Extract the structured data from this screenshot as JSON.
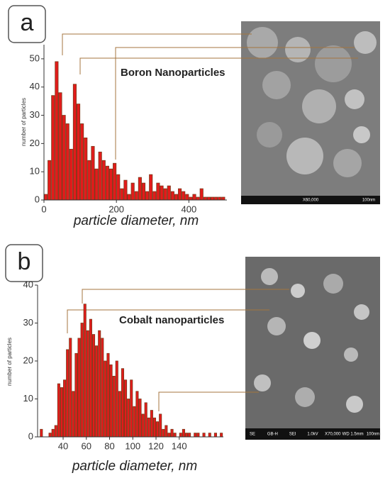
{
  "chart_data": [
    {
      "type": "histogram",
      "panel": "a",
      "title": "Boron Nanoparticles",
      "xlabel": "particle diameter, nm",
      "ylabel": "number of particles",
      "bins": [
        0,
        10,
        20,
        30,
        40,
        50,
        60,
        70,
        80,
        90,
        100,
        110,
        120,
        130,
        140,
        150,
        160,
        170,
        180,
        190,
        200,
        210,
        220,
        230,
        240,
        250,
        260,
        270,
        280,
        290,
        300,
        310,
        320,
        330,
        340,
        350,
        360,
        370,
        380,
        390,
        400,
        410,
        420,
        430,
        440,
        450,
        460,
        470,
        480,
        490,
        500
      ],
      "values": [
        2,
        14,
        37,
        49,
        38,
        30,
        27,
        18,
        41,
        34,
        27,
        22,
        14,
        19,
        11,
        17,
        14,
        12,
        11,
        13,
        9,
        4,
        7,
        2,
        6,
        3,
        8,
        6,
        3,
        9,
        3,
        6,
        5,
        4,
        5,
        3,
        2,
        4,
        3,
        2,
        1,
        2,
        1,
        4,
        1,
        1,
        1,
        1,
        1,
        1
      ],
      "color": "#e31b1b",
      "edge_color": "#7a3a1a",
      "xlim": [
        0,
        505
      ],
      "xticks": [
        0,
        200,
        400
      ],
      "ylim": [
        0,
        55
      ],
      "yticks": [
        0,
        10,
        20,
        30,
        40,
        50
      ],
      "micrograph_labels": [
        "X60,000",
        "100nm"
      ]
    },
    {
      "type": "histogram",
      "panel": "b",
      "title": "Cobalt nanoparticles",
      "xlabel": "particle diameter, nm",
      "ylabel": "number of particles",
      "bins": [
        20,
        22.5,
        25,
        27.5,
        30,
        32.5,
        35,
        37.5,
        40,
        42.5,
        45,
        47.5,
        50,
        52.5,
        55,
        57.5,
        60,
        62.5,
        65,
        67.5,
        70,
        72.5,
        75,
        77.5,
        80,
        82.5,
        85,
        87.5,
        90,
        92.5,
        95,
        97.5,
        100,
        102.5,
        105,
        107.5,
        110,
        112.5,
        115,
        117.5,
        120,
        122.5,
        125,
        127.5,
        130,
        132.5,
        135,
        137.5,
        140,
        142.5,
        145,
        147.5,
        150,
        152.5,
        155,
        157.5,
        160,
        162.5,
        165,
        167.5,
        170,
        172.5,
        175,
        177.5
      ],
      "values": [
        2,
        0,
        0,
        1,
        2,
        3,
        14,
        13,
        15,
        23,
        26,
        12,
        22,
        26,
        30,
        35,
        28,
        31,
        27,
        24,
        28,
        26,
        20,
        22,
        19,
        16,
        20,
        12,
        18,
        15,
        10,
        15,
        8,
        12,
        10,
        6,
        9,
        5,
        7,
        5,
        4,
        6,
        2,
        3,
        1,
        2,
        1,
        0,
        1,
        2,
        1,
        1,
        0,
        1,
        1,
        0,
        1,
        0,
        1,
        0,
        1,
        0,
        1
      ],
      "color": "#e31b1b",
      "edge_color": "#7a3a1a",
      "xlim": [
        18,
        178
      ],
      "xticks": [
        40,
        60,
        80,
        100,
        120,
        140
      ],
      "ylim": [
        0,
        40
      ],
      "yticks": [
        0,
        10,
        20,
        30,
        40
      ],
      "micrograph_labels": [
        "SE",
        "GB-H",
        "SEI",
        "1.0kV",
        "X70,000",
        "WD 1.5mm",
        "100nm"
      ]
    }
  ]
}
